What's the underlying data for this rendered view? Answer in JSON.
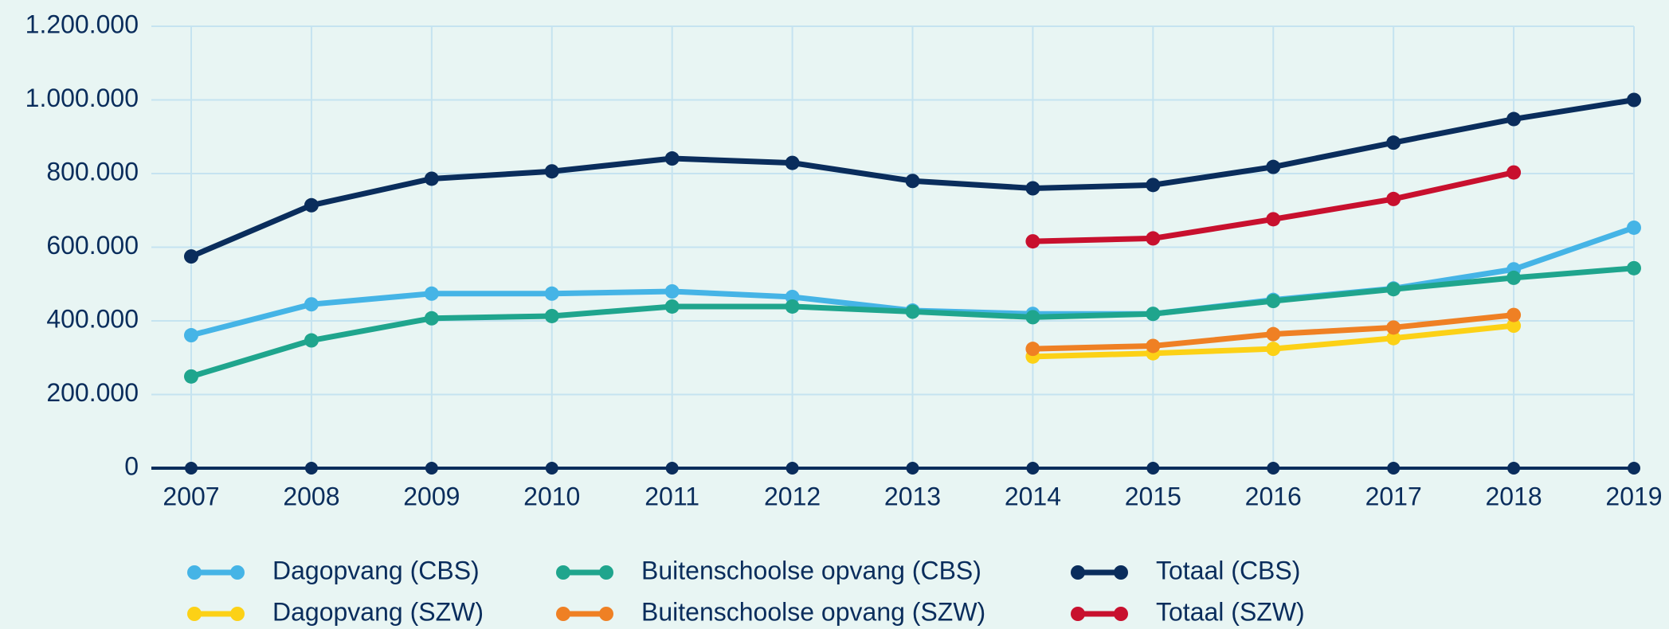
{
  "chart_data": {
    "type": "line",
    "categories": [
      "2007",
      "2008",
      "2009",
      "2010",
      "2011",
      "2012",
      "2013",
      "2014",
      "2015",
      "2016",
      "2017",
      "2018",
      "2019"
    ],
    "ylim": [
      0,
      1200000
    ],
    "yticks": [
      0,
      {
        "value": 200000,
        "label": "200.000"
      },
      {
        "value": 400000,
        "label": "400.000"
      },
      {
        "value": 600000,
        "label": "600.000"
      },
      {
        "value": 800000,
        "label": "800.000"
      },
      {
        "value": 1000000,
        "label": "1.000.000"
      },
      {
        "value": 1200000,
        "label": "1.200.000"
      }
    ],
    "grid": true,
    "series": [
      {
        "name": "Dagopvang (CBS)",
        "color": "#45b4e6",
        "values": [
          361000,
          445000,
          474000,
          474000,
          480000,
          465000,
          428000,
          419000,
          419000,
          457000,
          488000,
          540000,
          653000
        ]
      },
      {
        "name": "Buitenschoolse opvang (CBS)",
        "color": "#1fa58d",
        "values": [
          249000,
          347000,
          407000,
          413000,
          439000,
          439000,
          425000,
          410000,
          419000,
          454000,
          486000,
          517000,
          543000
        ]
      },
      {
        "name": "Totaal (CBS)",
        "color": "#0a2d5c",
        "values": [
          575000,
          714000,
          786000,
          806000,
          841000,
          829000,
          780000,
          760000,
          769000,
          818000,
          884000,
          948000,
          1000000
        ]
      },
      {
        "name": "Dagopvang (SZW)",
        "color": "#fcd116",
        "values": [
          null,
          null,
          null,
          null,
          null,
          null,
          null,
          303000,
          312000,
          324000,
          353000,
          387000,
          null
        ]
      },
      {
        "name": "Buitenschoolse opvang (SZW)",
        "color": "#ef8024",
        "values": [
          null,
          null,
          null,
          null,
          null,
          null,
          null,
          324000,
          332000,
          364000,
          382000,
          416000,
          null
        ]
      },
      {
        "name": "Totaal (SZW)",
        "color": "#c8102e",
        "values": [
          null,
          null,
          null,
          null,
          null,
          null,
          null,
          616000,
          624000,
          676000,
          731000,
          803000,
          null
        ]
      }
    ]
  }
}
